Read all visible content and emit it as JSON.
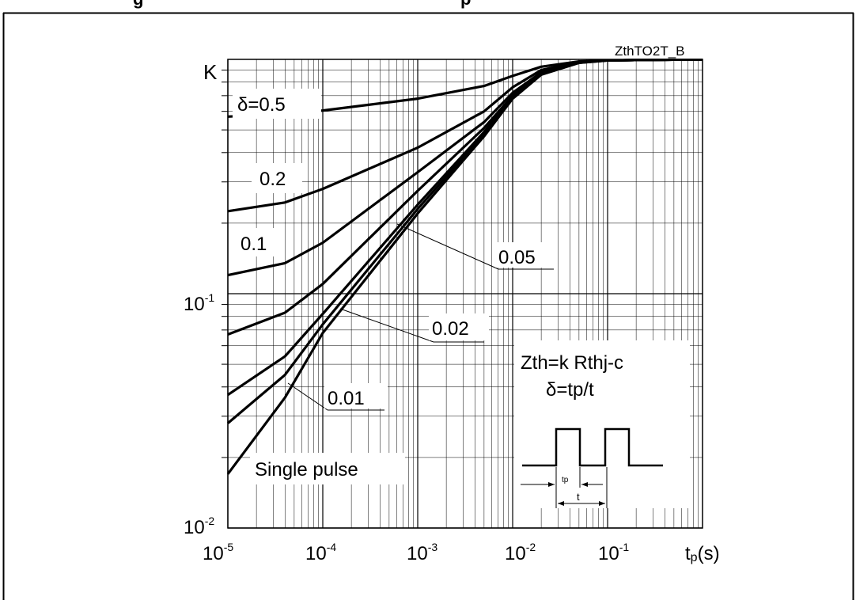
{
  "figure": {
    "heading": "g",
    "heading_right": "p"
  },
  "chart_data": {
    "type": "line",
    "title": "",
    "code": "ZthTO2T_B",
    "x_scale": "log",
    "y_scale": "log",
    "xlim": [
      1e-05,
      1
    ],
    "ylim": [
      0.01,
      1
    ],
    "grid": true,
    "y_top_label": "K",
    "x_axis_label": {
      "main": "t",
      "sub": "p",
      "unit": "(s)"
    },
    "x_ticks": [
      {
        "base": "10",
        "exp": "-5"
      },
      {
        "base": "10",
        "exp": "-4"
      },
      {
        "base": "10",
        "exp": "-3"
      },
      {
        "base": "10",
        "exp": "-2"
      },
      {
        "base": "10",
        "exp": "-1"
      }
    ],
    "y_ticks": [
      {
        "base": "10",
        "exp": "-1"
      },
      {
        "base": "10",
        "exp": "-2"
      }
    ],
    "series": [
      {
        "name": "δ=0.5",
        "x": [
          1e-05,
          4e-05,
          0.0001,
          0.001,
          0.005,
          0.01,
          0.02,
          0.05,
          0.1,
          0.3,
          1
        ],
        "y": [
          0.57,
          0.585,
          0.605,
          0.68,
          0.77,
          0.85,
          0.93,
          0.98,
          0.99,
          0.995,
          1.0
        ]
      },
      {
        "name": "0.2",
        "x": [
          1e-05,
          4e-05,
          0.0001,
          0.001,
          0.005,
          0.01,
          0.02,
          0.05,
          0.1,
          0.3,
          1
        ],
        "y": [
          0.225,
          0.245,
          0.28,
          0.42,
          0.6,
          0.76,
          0.9,
          0.975,
          0.99,
          0.995,
          1.0
        ]
      },
      {
        "name": "0.1",
        "x": [
          1e-05,
          4e-05,
          0.0001,
          0.001,
          0.005,
          0.01,
          0.02,
          0.05,
          0.1,
          0.3,
          1
        ],
        "y": [
          0.12,
          0.135,
          0.165,
          0.33,
          0.54,
          0.72,
          0.88,
          0.972,
          0.99,
          0.995,
          1.0
        ]
      },
      {
        "name": "0.05",
        "x": [
          1e-05,
          4e-05,
          0.0001,
          0.001,
          0.005,
          0.01,
          0.02,
          0.05,
          0.1,
          0.3,
          1
        ],
        "y": [
          0.067,
          0.083,
          0.11,
          0.275,
          0.51,
          0.7,
          0.87,
          0.97,
          0.99,
          0.995,
          1.0
        ]
      },
      {
        "name": "0.02",
        "x": [
          1e-05,
          4e-05,
          0.0001,
          0.001,
          0.005,
          0.01,
          0.02,
          0.05,
          0.1,
          0.3,
          1
        ],
        "y": [
          0.037,
          0.054,
          0.082,
          0.24,
          0.49,
          0.69,
          0.865,
          0.968,
          0.99,
          0.995,
          1.0
        ]
      },
      {
        "name": "0.01",
        "x": [
          1e-05,
          4e-05,
          0.0001,
          0.001,
          0.005,
          0.01,
          0.02,
          0.05,
          0.1,
          0.3,
          1
        ],
        "y": [
          0.028,
          0.045,
          0.074,
          0.23,
          0.48,
          0.685,
          0.862,
          0.967,
          0.99,
          0.995,
          1.0
        ]
      },
      {
        "name": "Single pulse",
        "x": [
          1e-05,
          4e-05,
          0.0001,
          0.001,
          0.005,
          0.01,
          0.02,
          0.05,
          0.1,
          0.3,
          1
        ],
        "y": [
          0.017,
          0.036,
          0.068,
          0.22,
          0.47,
          0.68,
          0.86,
          0.966,
          0.99,
          0.995,
          1.0
        ]
      }
    ],
    "labels": {
      "d05": {
        "sym": "δ",
        "rest": "=0.5"
      },
      "d02": "0.2",
      "d01": "0.1",
      "d005": "0.05",
      "d002": "0.02",
      "d001": "0.01",
      "single": "Single pulse"
    },
    "inset": {
      "formula1": "Zth=k Rthj-c",
      "formula2_sym": "δ",
      "formula2_rest": "=tp/t",
      "tp_label": "tp",
      "t_label": "t"
    }
  }
}
